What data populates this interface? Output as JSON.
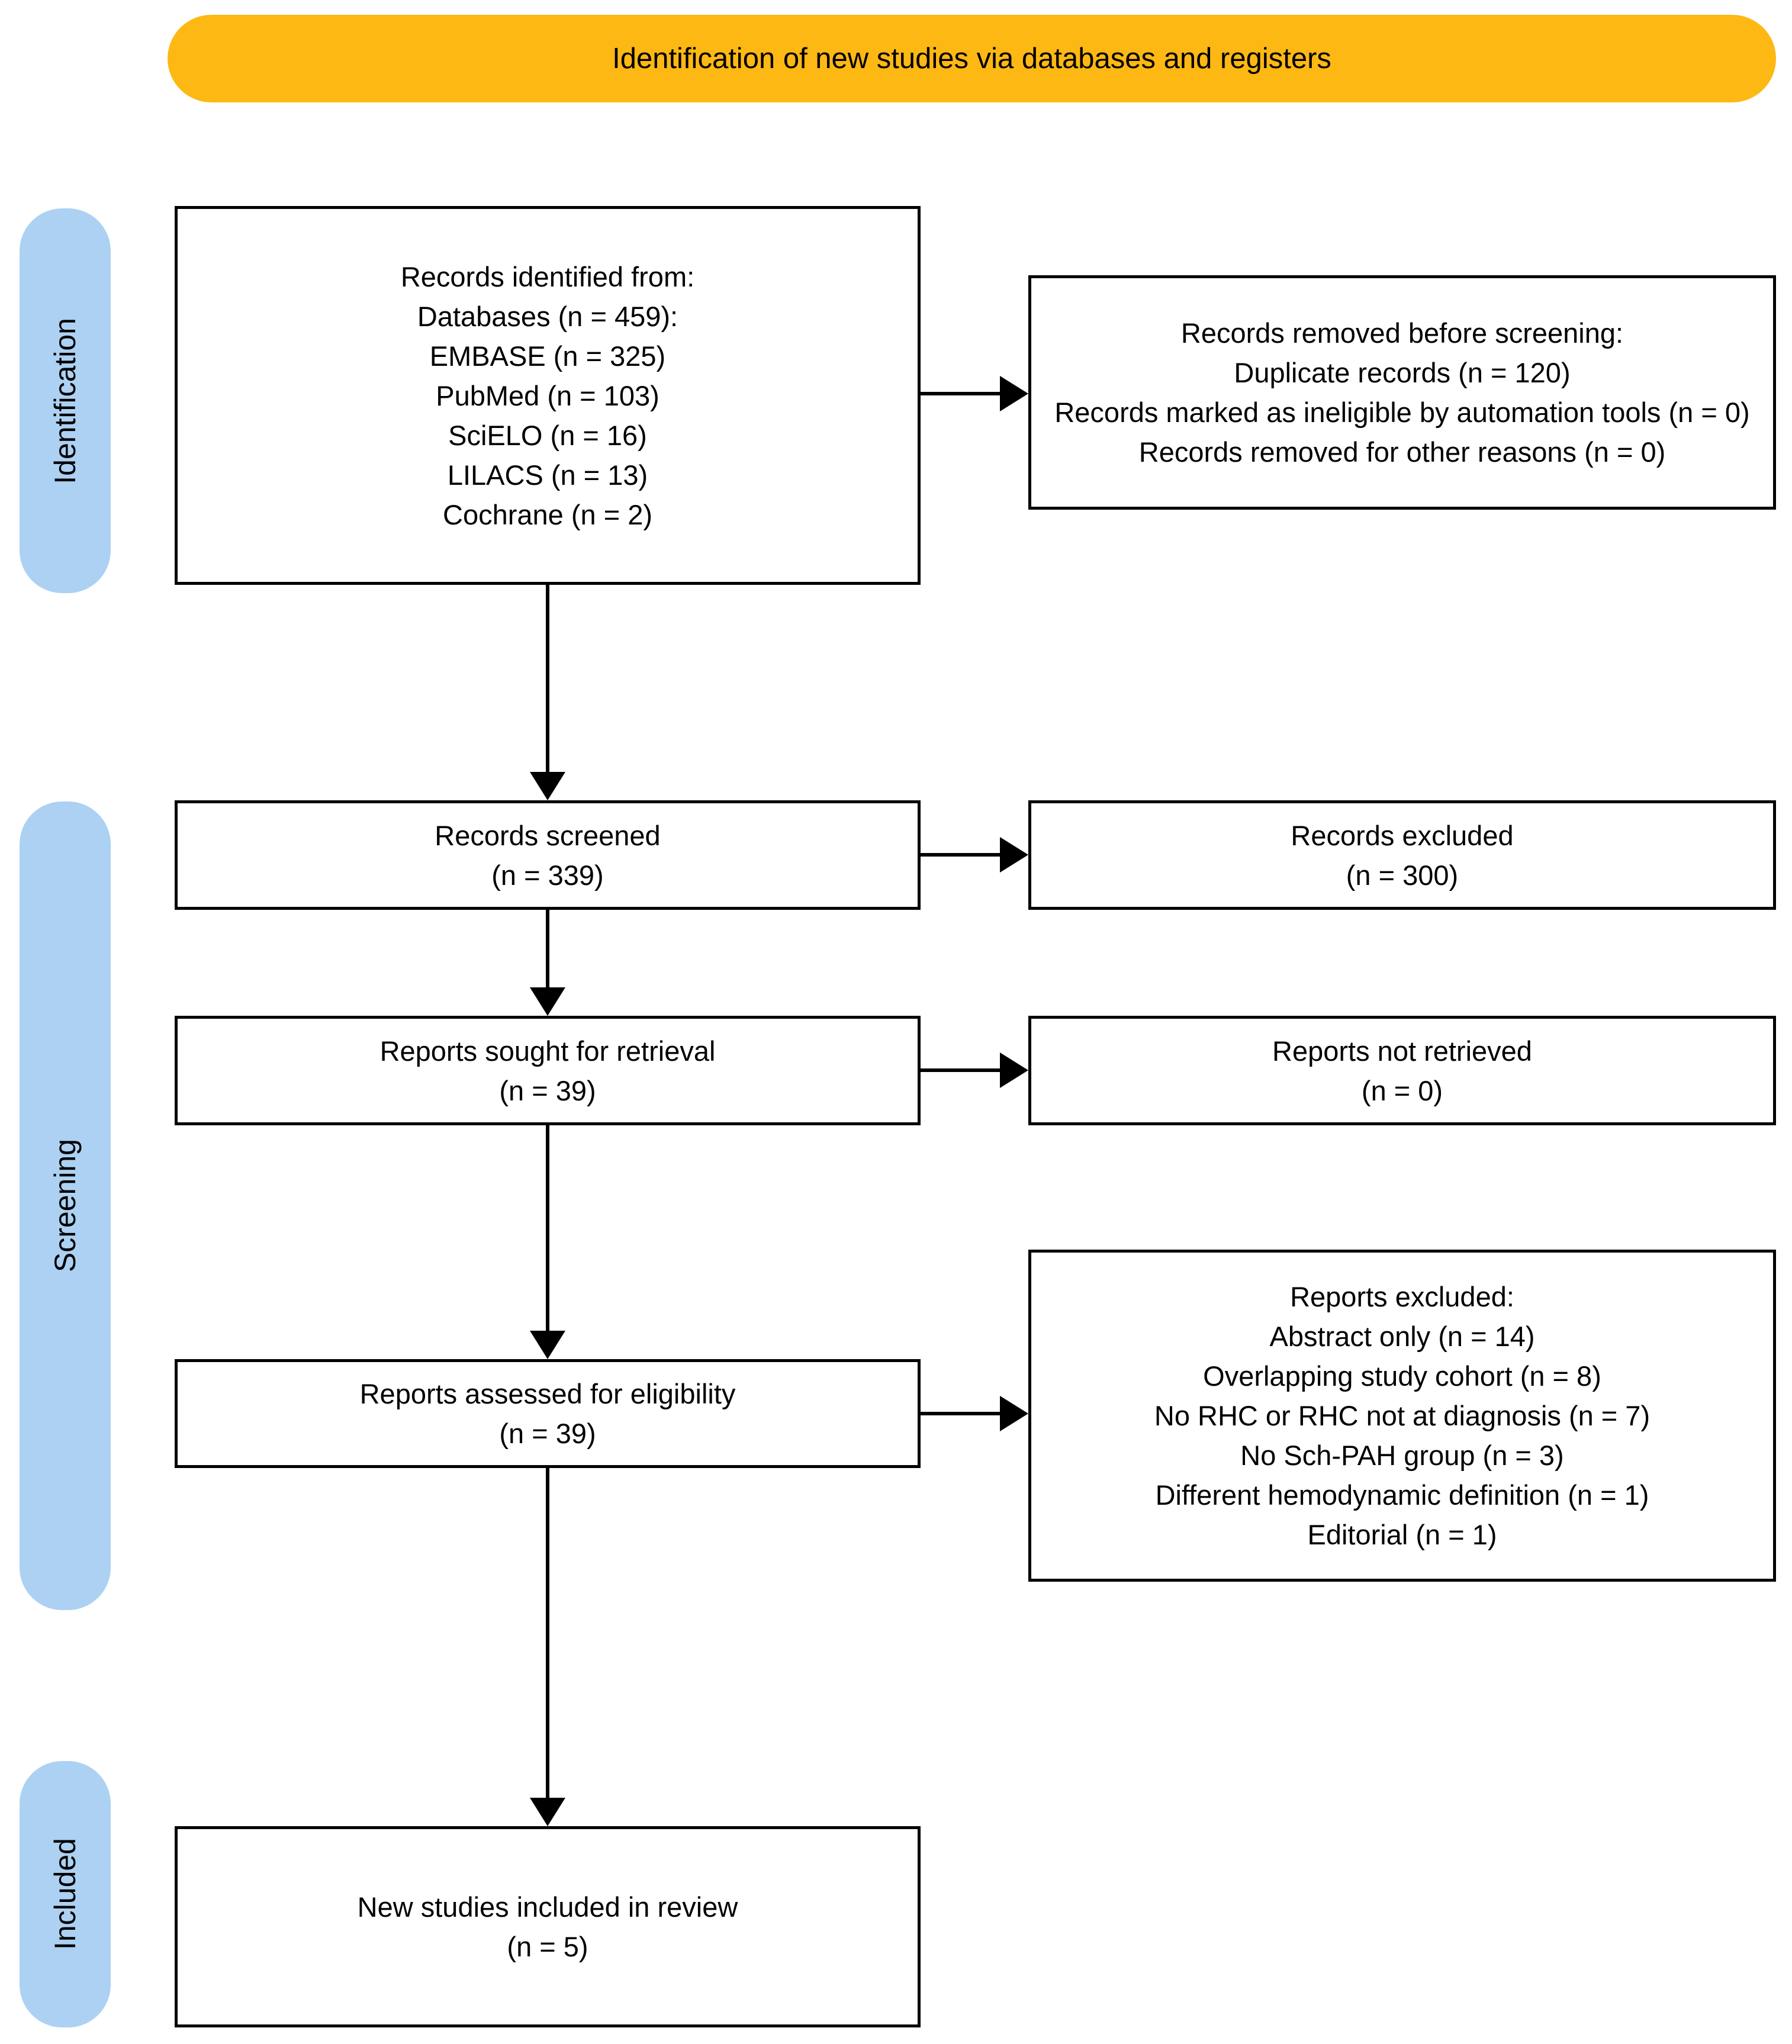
{
  "banner": {
    "label": "Identification of new studies via databases and registers"
  },
  "stages": {
    "identification": "Identification",
    "screening": "Screening",
    "included": "Included"
  },
  "boxes": {
    "records_identified": {
      "lines": [
        "Records identified from:",
        "Databases (n = 459):",
        "EMBASE (n = 325)",
        "PubMed (n = 103)",
        "SciELO (n = 16)",
        "LILACS (n = 13)",
        "Cochrane (n = 2)"
      ]
    },
    "records_removed": {
      "lines": [
        "Records removed before screening:",
        "Duplicate records (n = 120)",
        "Records marked as ineligible by automation tools (n = 0)",
        "Records removed for other reasons (n = 0)"
      ]
    },
    "records_screened": {
      "lines": [
        "Records screened",
        "(n = 339)"
      ]
    },
    "records_excluded": {
      "lines": [
        "Records excluded",
        "(n = 300)"
      ]
    },
    "reports_sought": {
      "lines": [
        "Reports sought for retrieval",
        "(n = 39)"
      ]
    },
    "reports_not_retrieved": {
      "lines": [
        "Reports not retrieved",
        "(n = 0)"
      ]
    },
    "reports_assessed": {
      "lines": [
        "Reports assessed for eligibility",
        "(n = 39)"
      ]
    },
    "reports_excluded": {
      "lines": [
        "Reports excluded:",
        "Abstract only (n = 14)",
        "Overlapping study cohort (n = 8)",
        "No RHC or RHC not at diagnosis (n = 7)",
        "No Sch-PAH group (n = 3)",
        "Different hemodynamic definition (n = 1)",
        "Editorial (n = 1)"
      ]
    },
    "new_studies_included": {
      "lines": [
        "New studies included in review",
        "(n = 5)"
      ]
    }
  },
  "colors": {
    "banner-bg": "#FDB813",
    "stage-bg": "#ACD1F2",
    "box-bg": "#FFFFFF",
    "line": "#000000",
    "text": "#000000"
  }
}
